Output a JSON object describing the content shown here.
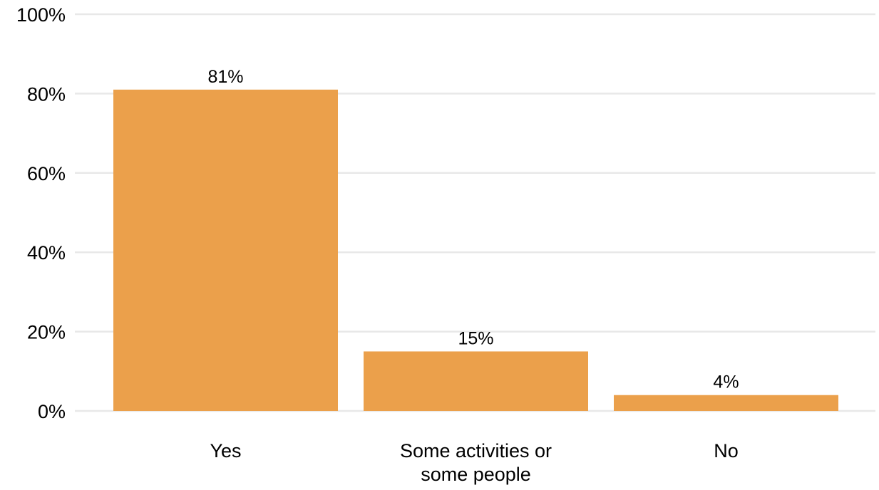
{
  "chart_data": {
    "type": "bar",
    "categories": [
      "Yes",
      [
        "Some activities or",
        "some people"
      ],
      "No"
    ],
    "values": [
      81,
      15,
      4
    ],
    "data_labels": [
      "81%",
      "15%",
      "4%"
    ],
    "yticks": [
      "0%",
      "20%",
      "40%",
      "60%",
      "80%",
      "100%"
    ],
    "ylim": [
      0,
      100
    ],
    "title": "",
    "xlabel": "",
    "ylabel": "",
    "grid": true,
    "bar_color": "#eba04b",
    "grid_color": "#e8e8e8"
  }
}
